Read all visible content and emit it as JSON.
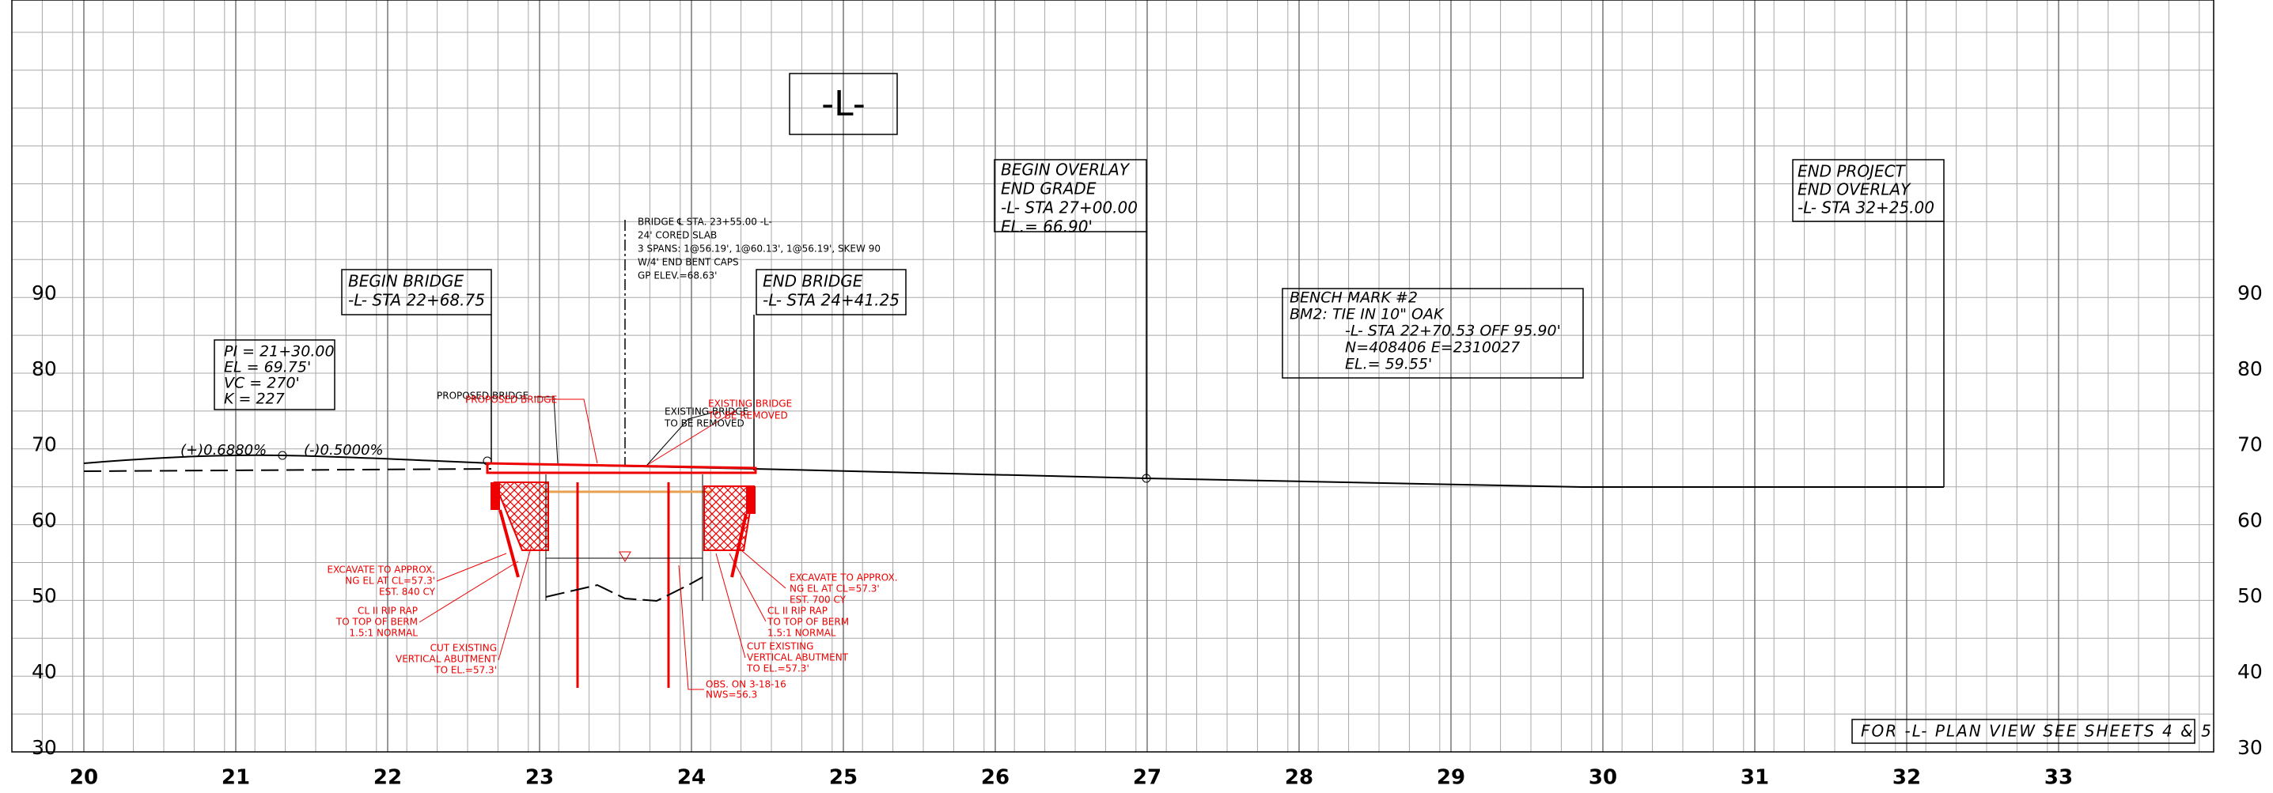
{
  "title_box": "-L-",
  "axes": {
    "stations": [
      "20",
      "21",
      "22",
      "23",
      "24",
      "25",
      "26",
      "27",
      "28",
      "29",
      "30",
      "31",
      "32",
      "33"
    ],
    "elevations_left": [
      "90",
      "80",
      "70",
      "60",
      "50",
      "40",
      "30"
    ],
    "elevations_right": [
      "90",
      "80",
      "70",
      "60",
      "50",
      "40",
      "30"
    ]
  },
  "begin_overlay": [
    "BEGIN OVERLAY",
    "END GRADE",
    "-L- STA 27+00.00",
    "EL.= 66.90'"
  ],
  "end_project": [
    "END PROJECT",
    "END OVERLAY",
    "-L- STA 32+25.00"
  ],
  "begin_bridge": [
    "BEGIN BRIDGE",
    "-L- STA 22+68.75"
  ],
  "end_bridge": [
    "END BRIDGE",
    "-L- STA 24+41.25"
  ],
  "bridge_note": [
    "BRIDGE ℄ STA. 23+55.00 -L-",
    "24' CORED SLAB",
    "3 SPANS: 1@56.19', 1@60.13', 1@56.19', SKEW 90",
    "W/4' END BENT CAPS",
    "GP ELEV.=68.63'"
  ],
  "bench_mark": [
    "BENCH MARK #2",
    "BM2: TIE IN 10\" OAK",
    "-L- STA 22+70.53 OFF 95.90'",
    "N=408406 E=2310027",
    "EL.= 59.55'"
  ],
  "pi_data": [
    "PI = 21+30.00",
    "EL = 69.75'",
    "VC = 270'",
    "K = 227"
  ],
  "grades": [
    "(+)0.6880%",
    "(-)0.5000%"
  ],
  "proposed_bridge": {
    "black": "PROPOSED BRIDGE",
    "red": "PROPOSED BRIDGE"
  },
  "existing_bridge": {
    "black": [
      "EXISTING BRIDGE",
      "TO BE REMOVED"
    ],
    "red": [
      "EXISTING BRIDGE",
      "TO BE REMOVED"
    ]
  },
  "left_notes": {
    "excavate": [
      "EXCAVATE TO APPROX.",
      "NG EL AT CL=57.3'",
      "EST. 840 CY"
    ],
    "rip_rap": [
      "CL II RIP RAP",
      "TO TOP OF BERM",
      "1.5:1 NORMAL"
    ],
    "cut": [
      "CUT EXISTING",
      "VERTICAL ABUTMENT",
      "TO EL.=57.3'"
    ]
  },
  "right_notes": {
    "excavate": [
      "EXCAVATE TO APPROX.",
      "NG EL AT CL=57.3'",
      "EST. 700 CY"
    ],
    "rip_rap": [
      "CL II RIP RAP",
      "TO TOP OF BERM",
      "1.5:1 NORMAL"
    ],
    "cut": [
      "CUT EXISTING",
      "VERTICAL ABUTMENT",
      "TO EL.=57.3'"
    ],
    "obs": [
      "OBS. ON 3-18-16",
      "NWS=56.3"
    ]
  },
  "plan_view_note": "FOR -L- PLAN VIEW SEE SHEETS 4 & 5"
}
